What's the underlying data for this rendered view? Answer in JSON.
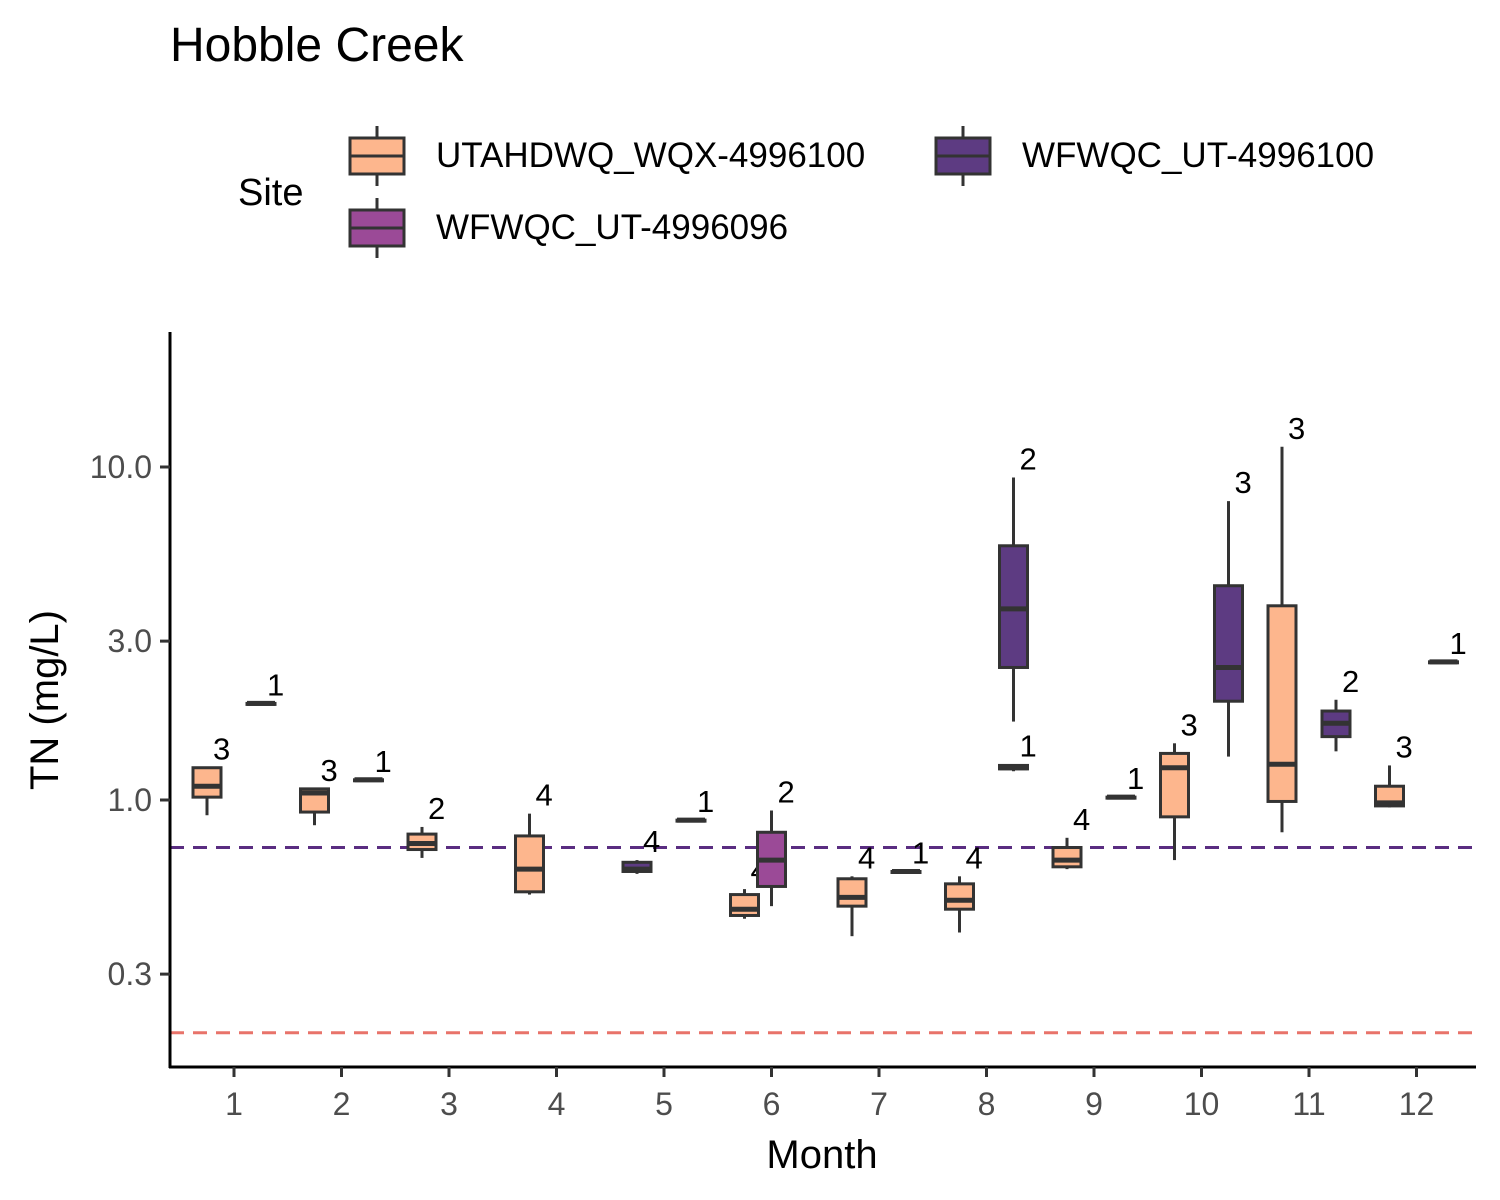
{
  "chart_data": {
    "type": "boxplot",
    "title": "Hobble Creek",
    "xlabel": "Month",
    "ylabel": "TN (mg/L)",
    "y_scale": "log10",
    "ylim": [
      0.15,
      30
    ],
    "y_ticks": [
      0.3,
      1.0,
      3.0,
      10.0
    ],
    "y_tick_labels": [
      "0.3",
      "1.0",
      "3.0",
      "10.0"
    ],
    "categories": [
      "1",
      "2",
      "3",
      "4",
      "5",
      "6",
      "7",
      "8",
      "9",
      "10",
      "11",
      "12"
    ],
    "legend": {
      "title": "Site",
      "position": "top"
    },
    "reference_lines": [
      {
        "value": 0.72,
        "color": "#5a2d81",
        "style": "dashed"
      },
      {
        "value": 0.2,
        "color": "#e8736a",
        "style": "dashed"
      }
    ],
    "series": [
      {
        "name": "UTAHDWQ_WQX-4996100",
        "color": "#fdb68d",
        "boxes": [
          {
            "month": 1,
            "min": 0.9,
            "q1": 1.02,
            "median": 1.1,
            "q3": 1.25,
            "max": 1.25,
            "n": "3"
          },
          {
            "month": 2,
            "min": 0.84,
            "q1": 0.92,
            "median": 1.05,
            "q3": 1.08,
            "max": 1.08,
            "n": "3"
          },
          {
            "month": 3,
            "min": 0.67,
            "q1": 0.71,
            "median": 0.74,
            "q3": 0.79,
            "max": 0.83,
            "n": "2"
          },
          {
            "month": 4,
            "min": 0.52,
            "q1": 0.53,
            "median": 0.62,
            "q3": 0.78,
            "max": 0.91,
            "n": "4"
          },
          {
            "month": 6,
            "min": 0.44,
            "q1": 0.45,
            "median": 0.47,
            "q3": 0.52,
            "max": 0.54,
            "n": "4"
          },
          {
            "month": 7,
            "min": 0.39,
            "q1": 0.48,
            "median": 0.51,
            "q3": 0.58,
            "max": 0.59,
            "n": "4"
          },
          {
            "month": 8,
            "min": 0.4,
            "q1": 0.47,
            "median": 0.5,
            "q3": 0.56,
            "max": 0.59,
            "n": "4"
          },
          {
            "month": 9,
            "min": 0.62,
            "q1": 0.63,
            "median": 0.66,
            "q3": 0.72,
            "max": 0.77,
            "n": "4"
          },
          {
            "month": 10,
            "min": 0.66,
            "q1": 0.89,
            "median": 1.25,
            "q3": 1.38,
            "max": 1.48,
            "n": "3"
          },
          {
            "month": 11,
            "min": 0.8,
            "q1": 0.99,
            "median": 1.28,
            "q3": 3.83,
            "max": 11.5,
            "n": "3"
          },
          {
            "month": 12,
            "min": 0.95,
            "q1": 0.96,
            "median": 0.98,
            "q3": 1.1,
            "max": 1.27,
            "n": "3"
          }
        ]
      },
      {
        "name": "WFWQC_UT-4996096",
        "color": "#9b4a97",
        "boxes": [
          {
            "month": 6,
            "min": 0.48,
            "q1": 0.55,
            "median": 0.66,
            "q3": 0.8,
            "max": 0.93,
            "n": "2"
          }
        ]
      },
      {
        "name": "WFWQC_UT-4996100",
        "color": "#5d3b82",
        "boxes": [
          {
            "month": 1,
            "min": 1.95,
            "q1": 1.95,
            "median": 1.95,
            "q3": 1.95,
            "max": 1.95,
            "n": "1"
          },
          {
            "month": 2,
            "min": 1.15,
            "q1": 1.15,
            "median": 1.15,
            "q3": 1.15,
            "max": 1.15,
            "n": "1"
          },
          {
            "month": 5,
            "min": 0.6,
            "q1": 0.61,
            "median": 0.62,
            "q3": 0.65,
            "max": 0.66,
            "n": "4"
          },
          {
            "month": 5,
            "min": 0.87,
            "q1": 0.87,
            "median": 0.87,
            "q3": 0.87,
            "max": 0.87,
            "n": "1",
            "slot": 1
          },
          {
            "month": 7,
            "min": 0.61,
            "q1": 0.61,
            "median": 0.61,
            "q3": 0.61,
            "max": 0.61,
            "n": "1"
          },
          {
            "month": 8,
            "min": 1.22,
            "q1": 1.24,
            "median": 1.25,
            "q3": 1.27,
            "max": 1.28,
            "n": "1"
          },
          {
            "month": 8,
            "min": 1.72,
            "q1": 2.5,
            "median": 3.75,
            "q3": 5.8,
            "max": 9.3,
            "n": "2"
          },
          {
            "month": 9,
            "min": 1.02,
            "q1": 1.02,
            "median": 1.02,
            "q3": 1.02,
            "max": 1.02,
            "n": "1"
          },
          {
            "month": 10,
            "min": 1.35,
            "q1": 1.98,
            "median": 2.5,
            "q3": 4.4,
            "max": 7.9,
            "n": "3"
          },
          {
            "month": 11,
            "min": 1.4,
            "q1": 1.55,
            "median": 1.7,
            "q3": 1.85,
            "max": 2.0,
            "n": "2"
          },
          {
            "month": 12,
            "min": 2.6,
            "q1": 2.6,
            "median": 2.6,
            "q3": 2.6,
            "max": 2.6,
            "n": "1"
          }
        ]
      }
    ]
  }
}
